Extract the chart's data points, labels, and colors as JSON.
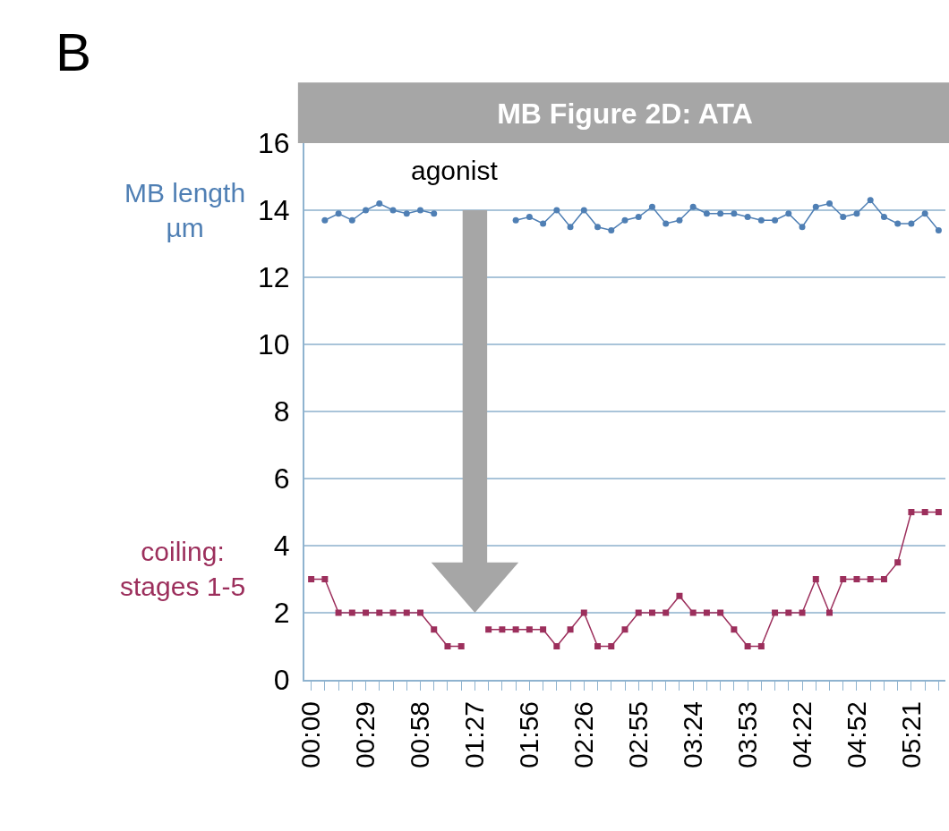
{
  "chart_data": {
    "type": "line",
    "title": "MB Figure 2D: ATA",
    "categories": [
      "00:00",
      null,
      null,
      null,
      "00:29",
      null,
      null,
      null,
      "00:58",
      null,
      null,
      null,
      "01:27",
      null,
      null,
      null,
      "01:56",
      null,
      null,
      null,
      "02:26",
      null,
      null,
      null,
      "02:55",
      null,
      null,
      null,
      "03:24",
      null,
      null,
      null,
      "03:53",
      null,
      null,
      null,
      "04:22",
      null,
      null,
      null,
      "04:52",
      null,
      null,
      null,
      "05:21",
      null,
      null
    ],
    "series": [
      {
        "name": "MB length\nµm",
        "color": "#4f7fb4",
        "marker": "circle",
        "values": [
          null,
          13.7,
          13.9,
          13.7,
          14.0,
          14.2,
          14.0,
          13.9,
          14.0,
          13.9,
          null,
          null,
          null,
          null,
          null,
          13.7,
          13.8,
          13.6,
          14.0,
          13.5,
          14.0,
          13.5,
          13.4,
          13.7,
          13.8,
          14.1,
          13.6,
          13.7,
          14.1,
          13.9,
          13.9,
          13.9,
          13.8,
          13.7,
          13.7,
          13.9,
          13.5,
          14.1,
          14.2,
          13.8,
          13.9,
          14.3,
          13.8,
          13.6,
          13.6,
          13.9,
          13.4
        ]
      },
      {
        "name": "coiling:\nstages 1-5",
        "color": "#9c2f5c",
        "marker": "square",
        "values": [
          3,
          3,
          2,
          2,
          2,
          2,
          2,
          2,
          2,
          1.5,
          1,
          1,
          null,
          1.5,
          1.5,
          1.5,
          1.5,
          1.5,
          1,
          1.5,
          2,
          1,
          1,
          1.5,
          2,
          2,
          2,
          2.5,
          2,
          2,
          2,
          1.5,
          1,
          1,
          2,
          2,
          2,
          3,
          2,
          3,
          3,
          3,
          3,
          3.5,
          5,
          5,
          5
        ]
      }
    ],
    "ylim": [
      0,
      16
    ],
    "yticks": [
      0,
      2,
      4,
      6,
      8,
      10,
      12,
      14,
      16
    ],
    "grid": "y",
    "legend": false,
    "line_style": "solid",
    "annotations": [
      "B",
      "agonist"
    ]
  }
}
